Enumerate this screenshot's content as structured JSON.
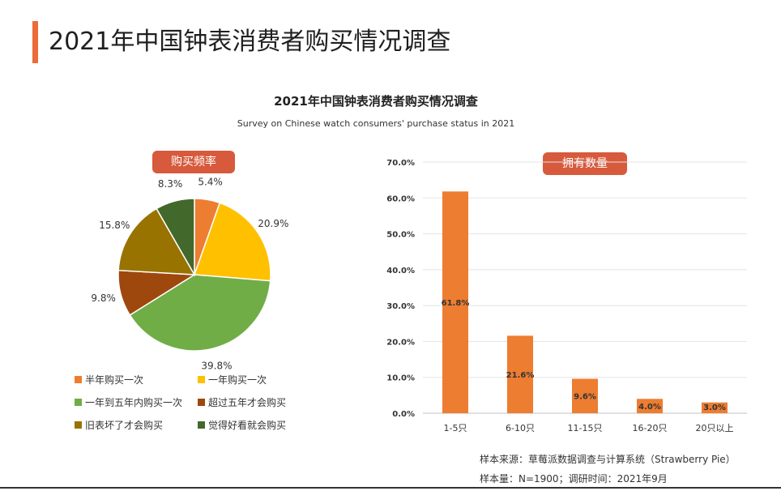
{
  "page": {
    "title": "2021年中国钟表消费者购买情况调查"
  },
  "chart_title": "2021年中国钟表消费者购买情况调查",
  "chart_subtitle": "Survey on Chinese watch consumers' purchase status in 2021",
  "source": {
    "line1": "样本来源：草莓派数据调查与计算系统（Strawberry Pie）",
    "line2": "样本量：N=1900；调研时间：2021年9月"
  },
  "colors": {
    "accent": "#ec6c39",
    "badge": "#d75a3c",
    "bar": "#ed7d31"
  },
  "chart_data": [
    {
      "type": "pie",
      "title": "购买频率",
      "slices": [
        {
          "label": "半年购买一次",
          "value": 5.4,
          "display": "5.4%",
          "color": "#ed7d31"
        },
        {
          "label": "一年购买一次",
          "value": 20.9,
          "display": "20.9%",
          "color": "#ffc000"
        },
        {
          "label": "一年到五年内购买一次",
          "value": 39.8,
          "display": "39.8%",
          "color": "#70ad47"
        },
        {
          "label": "超过五年才会购买",
          "value": 9.8,
          "display": "9.8%",
          "color": "#9e480e"
        },
        {
          "label": "旧表坏了才会购买",
          "value": 15.8,
          "display": "15.8%",
          "color": "#997300"
        },
        {
          "label": "觉得好看就会购买",
          "value": 8.3,
          "display": "8.3%",
          "color": "#43682b"
        }
      ],
      "legend_placement": "bottom"
    },
    {
      "type": "bar",
      "title": "拥有数量",
      "categories": [
        "1-5只",
        "6-10只",
        "11-15只",
        "16-20只",
        "20只以上"
      ],
      "values": [
        61.8,
        21.6,
        9.6,
        4.0,
        3.0
      ],
      "data_labels": [
        "61.8%",
        "21.6%",
        "9.6%",
        "4.0%",
        "3.0%"
      ],
      "ylim": [
        0,
        70
      ],
      "yticks": [
        0,
        10,
        20,
        30,
        40,
        50,
        60,
        70
      ],
      "ytick_labels": [
        "0.0%",
        "10.0%",
        "20.0%",
        "30.0%",
        "40.0%",
        "50.0%",
        "60.0%",
        "70.0%"
      ],
      "grid": true,
      "color": "#ed7d31"
    }
  ]
}
